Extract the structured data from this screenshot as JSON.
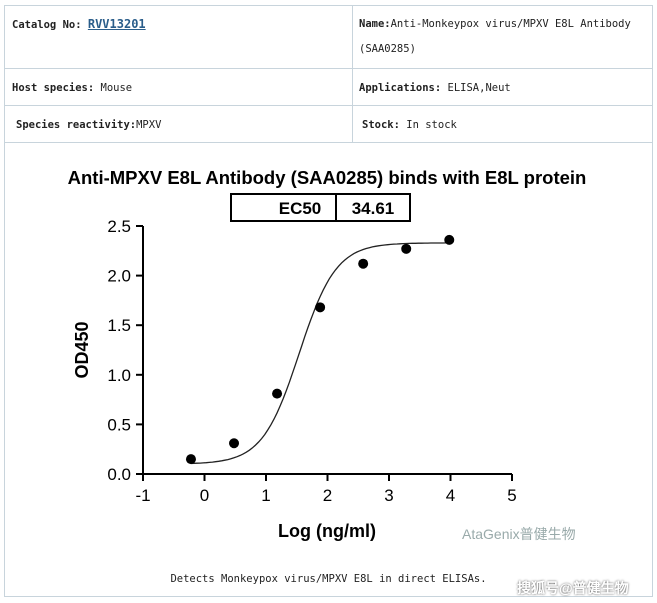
{
  "info": {
    "catalog_label": "Catalog No: ",
    "catalog_value": "RVV13201",
    "name_label": "Name:",
    "name_value": "Anti-Monkeypox virus/MPXV E8L Antibody (SAA0285)",
    "host_label": "Host species: ",
    "host_value": "Mouse",
    "applications_label": "Applications: ",
    "applications_value": "ELISA,Neut",
    "reactivity_label": "Species reactivity:",
    "reactivity_value": "MPXV",
    "stock_label": "Stock: ",
    "stock_value": "In stock"
  },
  "caption": "Detects Monkeypox virus/MPXV E8L in direct ELISAs.",
  "watermark": "AtaGenix普健生物",
  "source_watermark": "搜狐号@普健生物",
  "chart_data": {
    "type": "scatter",
    "title": "Anti-MPXV E8L Antibody (SAA0285) binds with  E8L protein",
    "ec50_label": "EC50",
    "ec50_value": "34.61",
    "xlabel": "Log (ng/ml)",
    "ylabel": "OD450",
    "xlim": [
      -1,
      5
    ],
    "ylim": [
      0,
      2.5
    ],
    "xticks": [
      "-1",
      "0",
      "1",
      "2",
      "3",
      "4",
      "5"
    ],
    "yticks": [
      "0.0",
      "0.5",
      "1.0",
      "1.5",
      "2.0",
      "2.5"
    ],
    "x": [
      -0.22,
      0.48,
      1.18,
      1.88,
      2.58,
      3.28,
      3.98
    ],
    "y": [
      0.15,
      0.31,
      0.81,
      1.68,
      2.12,
      2.27,
      2.36
    ],
    "fit": "4PL sigmoidal curve",
    "grid": false,
    "point_color": "#000000"
  }
}
